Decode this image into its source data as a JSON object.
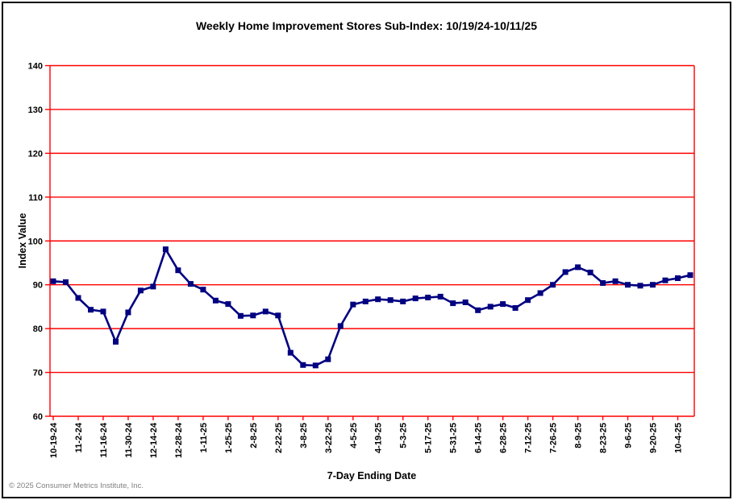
{
  "header": {
    "title": "Weekly Home Improvement Stores Sub-Index: 10/19/24-10/11/25"
  },
  "footer": {
    "copyright": "© 2025 Consumer Metrics Institute, Inc."
  },
  "chart_data": {
    "type": "line",
    "title": "Weekly Home Improvement Stores Sub-Index: 10/19/24-10/11/25",
    "xlabel": "7-Day Ending Date",
    "ylabel": "Index Value",
    "ylim": [
      60,
      140
    ],
    "y_ticks": [
      60,
      70,
      80,
      90,
      100,
      110,
      120,
      130,
      140
    ],
    "grid": "horizontal red gridlines, red plot frame",
    "legend": false,
    "tick_label_every": 2,
    "x_tick_labels": [
      "10-19-24",
      "11-2-24",
      "11-16-24",
      "11-30-24",
      "12-14-24",
      "12-28-24",
      "1-11-25",
      "1-25-25",
      "2-8-25",
      "2-22-25",
      "3-8-25",
      "3-22-25",
      "4-5-25",
      "4-19-25",
      "5-3-25",
      "5-17-25",
      "5-31-25",
      "6-14-25",
      "6-28-25",
      "7-12-25",
      "7-26-25",
      "8-9-25",
      "8-23-25",
      "9-6-25",
      "9-20-25",
      "10-4-25"
    ],
    "values": [
      90.8,
      90.6,
      87.0,
      84.3,
      83.9,
      77.0,
      83.7,
      88.7,
      89.6,
      98.1,
      93.3,
      90.2,
      88.9,
      86.4,
      85.6,
      82.9,
      83.0,
      83.9,
      83.0,
      74.5,
      71.7,
      71.6,
      73.0,
      80.6,
      85.5,
      86.2,
      86.7,
      86.5,
      86.2,
      86.9,
      87.1,
      87.3,
      85.8,
      86.0,
      84.2,
      85.0,
      85.6,
      84.7,
      86.5,
      88.1,
      90.0,
      92.9,
      94.0,
      92.8,
      90.4,
      90.8,
      90.0,
      89.8,
      90.0,
      91.0,
      91.5,
      92.2
    ],
    "colors": {
      "line": "#000080",
      "marker": "#000080",
      "grid": "#ff0000",
      "text": "#000000",
      "copyright_text": "#808080"
    }
  }
}
